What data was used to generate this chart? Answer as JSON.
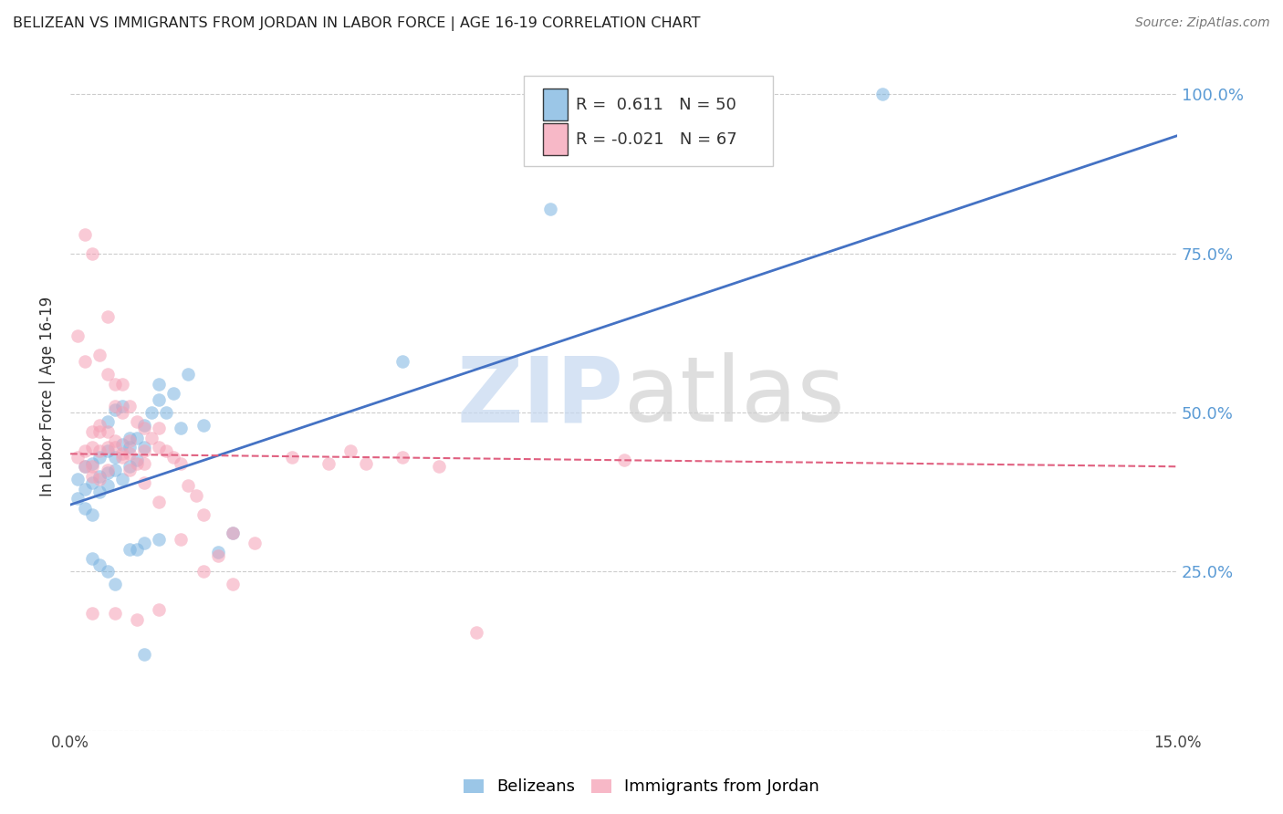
{
  "title": "BELIZEAN VS IMMIGRANTS FROM JORDAN IN LABOR FORCE | AGE 16-19 CORRELATION CHART",
  "source": "Source: ZipAtlas.com",
  "ylabel": "In Labor Force | Age 16-19",
  "xlim": [
    0.0,
    0.15
  ],
  "ylim": [
    0.0,
    1.05
  ],
  "xtick_positions": [
    0.0,
    0.03,
    0.06,
    0.09,
    0.12,
    0.15
  ],
  "xtick_labels": [
    "0.0%",
    "",
    "",
    "",
    "",
    "15.0%"
  ],
  "ytick_positions_right": [
    1.0,
    0.75,
    0.5,
    0.25
  ],
  "ytick_labels_right": [
    "100.0%",
    "75.0%",
    "50.0%",
    "25.0%"
  ],
  "legend_blue_R": "0.611",
  "legend_blue_N": "50",
  "legend_pink_R": "-0.021",
  "legend_pink_N": "67",
  "blue_color": "#7ab3e0",
  "pink_color": "#f5a0b5",
  "blue_line_color": "#4472c4",
  "pink_line_color": "#e06080",
  "right_axis_color": "#5b9bd5",
  "grid_color": "#cccccc",
  "background_color": "#ffffff",
  "blue_scatter_x": [
    0.001,
    0.002,
    0.002,
    0.003,
    0.003,
    0.004,
    0.004,
    0.005,
    0.005,
    0.005,
    0.006,
    0.006,
    0.007,
    0.007,
    0.008,
    0.008,
    0.009,
    0.009,
    0.01,
    0.01,
    0.011,
    0.012,
    0.012,
    0.013,
    0.014,
    0.015,
    0.016,
    0.018,
    0.02,
    0.022,
    0.001,
    0.002,
    0.003,
    0.004,
    0.005,
    0.006,
    0.007,
    0.008,
    0.009,
    0.01,
    0.003,
    0.004,
    0.005,
    0.006,
    0.008,
    0.01,
    0.012,
    0.045,
    0.11,
    0.065
  ],
  "blue_scatter_y": [
    0.395,
    0.38,
    0.415,
    0.39,
    0.42,
    0.375,
    0.4,
    0.385,
    0.405,
    0.44,
    0.41,
    0.43,
    0.395,
    0.45,
    0.415,
    0.445,
    0.425,
    0.46,
    0.445,
    0.48,
    0.5,
    0.52,
    0.545,
    0.5,
    0.53,
    0.475,
    0.56,
    0.48,
    0.28,
    0.31,
    0.365,
    0.35,
    0.34,
    0.43,
    0.485,
    0.505,
    0.51,
    0.46,
    0.285,
    0.295,
    0.27,
    0.26,
    0.25,
    0.23,
    0.285,
    0.12,
    0.3,
    0.58,
    1.0,
    0.82
  ],
  "pink_scatter_x": [
    0.001,
    0.001,
    0.002,
    0.002,
    0.002,
    0.003,
    0.003,
    0.003,
    0.003,
    0.004,
    0.004,
    0.004,
    0.005,
    0.005,
    0.005,
    0.005,
    0.006,
    0.006,
    0.006,
    0.007,
    0.007,
    0.007,
    0.008,
    0.008,
    0.009,
    0.009,
    0.01,
    0.01,
    0.011,
    0.012,
    0.012,
    0.013,
    0.014,
    0.015,
    0.016,
    0.017,
    0.018,
    0.02,
    0.022,
    0.025,
    0.003,
    0.004,
    0.005,
    0.007,
    0.008,
    0.01,
    0.012,
    0.015,
    0.018,
    0.022,
    0.002,
    0.004,
    0.006,
    0.008,
    0.01,
    0.003,
    0.006,
    0.009,
    0.012,
    0.055,
    0.075,
    0.03,
    0.035,
    0.038,
    0.04,
    0.045,
    0.05
  ],
  "pink_scatter_y": [
    0.62,
    0.43,
    0.58,
    0.44,
    0.415,
    0.47,
    0.445,
    0.415,
    0.4,
    0.47,
    0.44,
    0.395,
    0.56,
    0.47,
    0.445,
    0.41,
    0.545,
    0.51,
    0.445,
    0.545,
    0.5,
    0.435,
    0.51,
    0.455,
    0.485,
    0.42,
    0.475,
    0.44,
    0.46,
    0.475,
    0.445,
    0.44,
    0.43,
    0.42,
    0.385,
    0.37,
    0.34,
    0.275,
    0.31,
    0.295,
    0.75,
    0.59,
    0.65,
    0.43,
    0.41,
    0.39,
    0.36,
    0.3,
    0.25,
    0.23,
    0.78,
    0.48,
    0.455,
    0.435,
    0.42,
    0.185,
    0.185,
    0.175,
    0.19,
    0.155,
    0.425,
    0.43,
    0.42,
    0.44,
    0.42,
    0.43,
    0.415
  ],
  "blue_line_x": [
    0.0,
    0.15
  ],
  "blue_line_y": [
    0.355,
    0.935
  ],
  "pink_line_x": [
    0.0,
    0.15
  ],
  "pink_line_y": [
    0.435,
    0.415
  ]
}
